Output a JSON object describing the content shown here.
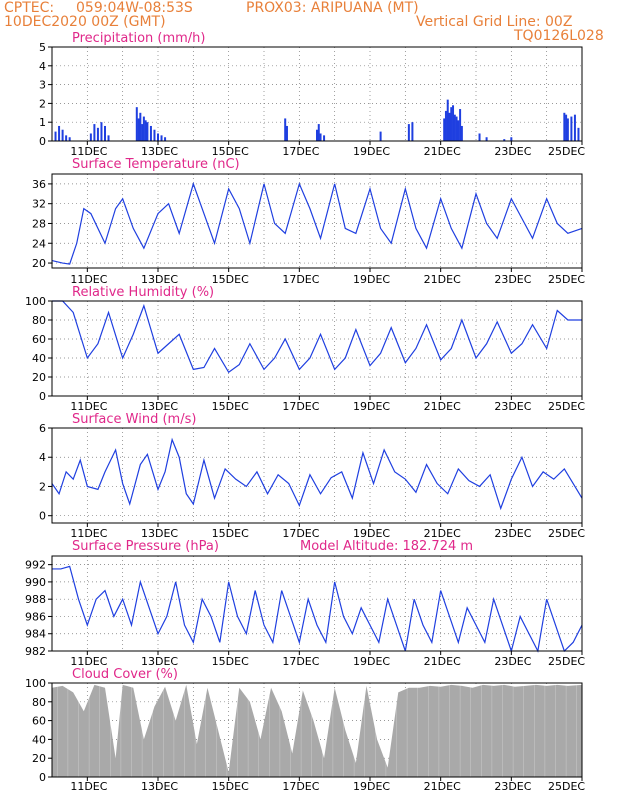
{
  "header": {
    "source": "CPTEC:",
    "coords": "059:04W-08:53S",
    "station": "PROX03: ARIPUANA (MT)",
    "datetime": "10DEC2020 00Z (GMT)",
    "grid_note": "Vertical Grid Line: 00Z",
    "run_id": "TQ0126L028"
  },
  "colors": {
    "line": "#1f3fe0",
    "bars": "#1f3fe0",
    "cloud": "#a9a9a9",
    "title": "#e0288a",
    "header": "#e8803a"
  },
  "x_tick_labels": [
    "11DEC",
    "13DEC",
    "15DEC",
    "17DEC",
    "19DEC",
    "21DEC",
    "23DEC",
    "25DEC"
  ],
  "chart_data": [
    {
      "id": "precip",
      "type": "bar",
      "title": "Precipitation (mm/h)",
      "x_unit": "days since 10DEC2020 00Z",
      "ylim": [
        0,
        5
      ],
      "yticks": [
        0,
        1,
        2,
        3,
        4,
        5
      ],
      "x": [
        0.1,
        0.2,
        0.3,
        0.4,
        0.5,
        1.1,
        1.2,
        1.3,
        1.4,
        1.5,
        1.6,
        2.4,
        2.45,
        2.5,
        2.55,
        2.6,
        2.65,
        2.7,
        2.8,
        2.9,
        3.0,
        3.1,
        3.2,
        6.6,
        6.65,
        7.5,
        7.55,
        7.6,
        7.7,
        9.3,
        10.1,
        10.2,
        11.1,
        11.15,
        11.2,
        11.25,
        11.3,
        11.35,
        11.4,
        11.45,
        11.5,
        11.55,
        11.6,
        12.1,
        12.3,
        12.8,
        13.0,
        14.5,
        14.55,
        14.6,
        14.7,
        14.8,
        14.9
      ],
      "values": [
        0.5,
        0.8,
        0.6,
        0.3,
        0.2,
        0.4,
        0.9,
        0.7,
        1.0,
        0.8,
        0.3,
        1.8,
        1.2,
        1.5,
        0.9,
        1.3,
        1.1,
        1.0,
        0.8,
        0.6,
        0.4,
        0.3,
        0.2,
        1.2,
        0.8,
        0.6,
        0.9,
        0.4,
        0.3,
        0.5,
        0.9,
        1.0,
        1.2,
        1.6,
        2.2,
        1.5,
        1.8,
        1.9,
        1.4,
        1.3,
        1.1,
        1.7,
        0.8,
        0.4,
        0.2,
        0.1,
        0.2,
        1.5,
        1.4,
        1.2,
        1.3,
        1.4,
        0.7
      ]
    },
    {
      "id": "temp",
      "type": "line",
      "title": "Surface Temperature (nC)",
      "ylim": [
        19,
        38
      ],
      "yticks": [
        20,
        24,
        28,
        32,
        36
      ],
      "x": [
        0,
        0.3,
        0.5,
        0.7,
        0.9,
        1.1,
        1.5,
        1.8,
        2.0,
        2.3,
        2.6,
        3.0,
        3.3,
        3.6,
        4.0,
        4.3,
        4.6,
        5.0,
        5.3,
        5.6,
        6.0,
        6.3,
        6.6,
        7.0,
        7.3,
        7.6,
        8.0,
        8.3,
        8.6,
        9.0,
        9.3,
        9.6,
        10.0,
        10.3,
        10.6,
        11.0,
        11.3,
        11.6,
        12.0,
        12.3,
        12.6,
        13.0,
        13.3,
        13.6,
        14.0,
        14.3,
        14.6,
        15.0
      ],
      "values": [
        20.5,
        20,
        19.8,
        24,
        31,
        30,
        24,
        31,
        33,
        27,
        23,
        30,
        32,
        26,
        36,
        30,
        24,
        35,
        31,
        24,
        36,
        28,
        26,
        36,
        31,
        25,
        36,
        27,
        26,
        35,
        27,
        24,
        35,
        27,
        23,
        33,
        27,
        23,
        34,
        28,
        25,
        33,
        29,
        25,
        33,
        28,
        26,
        27
      ]
    },
    {
      "id": "rh",
      "type": "line",
      "title": "Relative Humidity (%)",
      "ylim": [
        0,
        100
      ],
      "yticks": [
        0,
        20,
        40,
        60,
        80,
        100
      ],
      "x": [
        0,
        0.3,
        0.6,
        1.0,
        1.3,
        1.6,
        2.0,
        2.3,
        2.6,
        3.0,
        3.3,
        3.6,
        4.0,
        4.3,
        4.6,
        5.0,
        5.3,
        5.6,
        6.0,
        6.3,
        6.6,
        7.0,
        7.3,
        7.6,
        8.0,
        8.3,
        8.6,
        9.0,
        9.3,
        9.6,
        10.0,
        10.3,
        10.6,
        11.0,
        11.3,
        11.6,
        12.0,
        12.3,
        12.6,
        13.0,
        13.3,
        13.6,
        14.0,
        14.3,
        14.6,
        15.0
      ],
      "values": [
        100,
        100,
        88,
        40,
        55,
        88,
        40,
        65,
        95,
        45,
        55,
        65,
        28,
        30,
        50,
        25,
        33,
        55,
        28,
        40,
        60,
        28,
        40,
        65,
        28,
        40,
        70,
        32,
        45,
        72,
        35,
        50,
        75,
        38,
        50,
        80,
        40,
        55,
        78,
        45,
        55,
        75,
        50,
        90,
        80,
        80
      ]
    },
    {
      "id": "wind",
      "type": "line",
      "title": "Surface Wind (m/s)",
      "ylim": [
        -0.5,
        6
      ],
      "yticks": [
        0,
        2,
        4,
        6
      ],
      "x": [
        0,
        0.2,
        0.4,
        0.6,
        0.8,
        1.0,
        1.3,
        1.5,
        1.8,
        2.0,
        2.2,
        2.5,
        2.7,
        3.0,
        3.2,
        3.4,
        3.6,
        3.8,
        4.0,
        4.3,
        4.6,
        4.9,
        5.2,
        5.5,
        5.8,
        6.1,
        6.4,
        6.7,
        7.0,
        7.3,
        7.6,
        7.9,
        8.2,
        8.5,
        8.8,
        9.1,
        9.4,
        9.7,
        10.0,
        10.3,
        10.6,
        10.9,
        11.2,
        11.5,
        11.8,
        12.1,
        12.4,
        12.7,
        13.0,
        13.3,
        13.6,
        13.9,
        14.2,
        14.5,
        14.8,
        15.0
      ],
      "values": [
        2.2,
        1.5,
        3.0,
        2.5,
        3.8,
        2.0,
        1.8,
        3.0,
        4.5,
        2.2,
        0.8,
        3.5,
        4.2,
        1.8,
        3.0,
        5.2,
        4.0,
        1.5,
        0.8,
        3.8,
        1.2,
        3.2,
        2.5,
        2.0,
        3.0,
        1.5,
        2.8,
        2.2,
        0.7,
        2.8,
        1.5,
        2.6,
        3.0,
        1.2,
        4.3,
        2.2,
        4.5,
        3.0,
        2.5,
        1.6,
        3.5,
        2.2,
        1.5,
        3.2,
        2.4,
        2.0,
        2.8,
        0.5,
        2.5,
        4.0,
        2.0,
        3.0,
        2.5,
        3.2,
        2.0,
        1.2
      ]
    },
    {
      "id": "pres",
      "type": "line",
      "title": "Surface Pressure (hPa)",
      "annotation": "Model Altitude: 182.724 m",
      "ylim": [
        982,
        993
      ],
      "yticks": [
        982,
        984,
        986,
        988,
        990,
        992
      ],
      "x": [
        0,
        0.25,
        0.5,
        0.75,
        1.0,
        1.25,
        1.5,
        1.75,
        2.0,
        2.25,
        2.5,
        2.75,
        3.0,
        3.25,
        3.5,
        3.75,
        4.0,
        4.25,
        4.5,
        4.75,
        5.0,
        5.25,
        5.5,
        5.75,
        6.0,
        6.25,
        6.5,
        6.75,
        7.0,
        7.25,
        7.5,
        7.75,
        8.0,
        8.25,
        8.5,
        8.75,
        9.0,
        9.25,
        9.5,
        9.75,
        10.0,
        10.25,
        10.5,
        10.75,
        11.0,
        11.25,
        11.5,
        11.75,
        12.0,
        12.25,
        12.5,
        12.75,
        13.0,
        13.25,
        13.5,
        13.75,
        14.0,
        14.25,
        14.5,
        14.75,
        15.0
      ],
      "values": [
        991.5,
        991.5,
        991.8,
        988,
        985,
        988,
        989,
        986,
        988,
        985,
        990,
        987,
        984,
        986,
        990,
        985,
        983,
        988,
        986,
        983,
        990,
        986,
        984,
        989,
        985,
        983,
        989,
        986,
        983,
        988,
        985,
        983,
        990,
        986,
        984,
        987,
        985,
        983,
        988,
        985,
        982,
        988,
        985,
        983,
        989,
        986,
        983,
        987,
        985,
        983,
        988,
        985,
        982,
        986,
        984,
        982,
        988,
        985,
        982,
        983,
        985
      ]
    },
    {
      "id": "cloud",
      "type": "area",
      "title": "Cloud Cover (%)",
      "ylim": [
        0,
        100
      ],
      "yticks": [
        0,
        20,
        40,
        60,
        80,
        100
      ],
      "x": [
        0,
        0.3,
        0.6,
        0.9,
        1.2,
        1.5,
        1.8,
        2.0,
        2.3,
        2.6,
        2.9,
        3.2,
        3.5,
        3.8,
        4.1,
        4.4,
        4.7,
        5.0,
        5.3,
        5.6,
        5.9,
        6.2,
        6.5,
        6.8,
        7.1,
        7.4,
        7.7,
        8.0,
        8.3,
        8.6,
        8.9,
        9.2,
        9.5,
        9.8,
        10.1,
        10.4,
        10.7,
        11.0,
        11.3,
        11.6,
        11.9,
        12.2,
        12.5,
        12.8,
        13.1,
        13.4,
        13.7,
        14.0,
        14.3,
        14.6,
        15.0
      ],
      "values": [
        95,
        97,
        90,
        70,
        98,
        95,
        20,
        98,
        95,
        40,
        75,
        96,
        60,
        98,
        35,
        95,
        50,
        5,
        95,
        80,
        40,
        95,
        70,
        25,
        92,
        60,
        20,
        95,
        50,
        15,
        97,
        40,
        10,
        90,
        95,
        95,
        97,
        96,
        98,
        97,
        95,
        98,
        97,
        98,
        96,
        97,
        98,
        97,
        98,
        97,
        98
      ]
    }
  ]
}
